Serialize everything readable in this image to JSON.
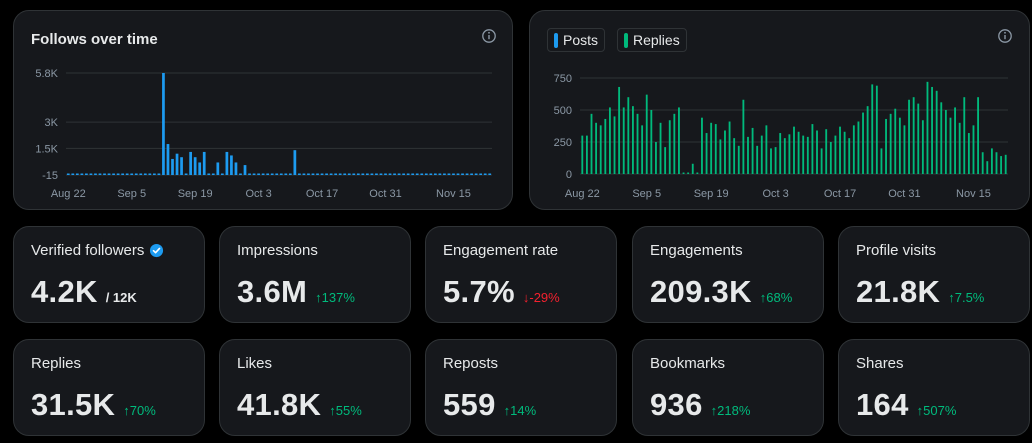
{
  "colors": {
    "posts": "#1d9bf0",
    "replies": "#00ba7c",
    "up": "#00ba7c",
    "down": "#f4212e"
  },
  "follows_chart": {
    "title": "Follows over time",
    "info_icon": "info-icon"
  },
  "posts_chart": {
    "legend_posts": "Posts",
    "legend_replies": "Replies",
    "info_icon": "info-icon"
  },
  "chart_data": [
    {
      "type": "bar",
      "title": "Follows over time",
      "series": [
        {
          "name": "Follows",
          "color": "#1d9bf0",
          "values": [
            -200,
            -200,
            -200,
            -250,
            -200,
            -220,
            -200,
            -250,
            -180,
            -200,
            -220,
            -200,
            -250,
            -230,
            -200,
            -200,
            -250,
            -200,
            -220,
            -250,
            -220,
            5800,
            1750,
            900,
            1200,
            1000,
            -200,
            1300,
            1000,
            700,
            1300,
            -200,
            -200,
            700,
            -200,
            1300,
            1100,
            700,
            -200,
            550,
            -200,
            -200,
            -150,
            -200,
            -200,
            -200,
            -200,
            -200,
            -200,
            -150,
            1400,
            -200,
            -200,
            -200,
            -200,
            -200,
            -200,
            -200,
            -200,
            -200,
            -200,
            -200,
            -200,
            -200,
            -200,
            -200,
            -200,
            -200,
            -200,
            -200,
            -200,
            -200,
            -200,
            -200,
            -200,
            -200,
            -200,
            -200,
            -200,
            -200,
            -200,
            -200,
            -200,
            -200,
            -200,
            -200,
            -200,
            -200,
            -200,
            -200,
            -200,
            -200,
            -200,
            -200
          ]
        }
      ],
      "x_tick_labels": [
        "Aug 22",
        "Sep 5",
        "Sep 19",
        "Oct 3",
        "Oct 17",
        "Oct 31",
        "Nov 15"
      ],
      "x_tick_index": [
        0,
        14,
        28,
        42,
        56,
        70,
        85
      ],
      "y_ticks": [
        -15,
        1500,
        3000,
        5800
      ],
      "y_tick_labels": [
        "-15",
        "1.5K",
        "3K",
        "5.8K"
      ],
      "ylim": [
        -15,
        5800
      ],
      "grid": true
    },
    {
      "type": "bar",
      "series": [
        {
          "name": "Posts",
          "color": "#1d9bf0",
          "values": []
        },
        {
          "name": "Replies",
          "color": "#00ba7c",
          "values": [
            300,
            300,
            470,
            400,
            380,
            430,
            520,
            450,
            680,
            520,
            600,
            530,
            470,
            380,
            620,
            500,
            250,
            400,
            210,
            420,
            470,
            520,
            0,
            0,
            80,
            0,
            440,
            320,
            400,
            390,
            270,
            340,
            410,
            280,
            220,
            580,
            290,
            360,
            220,
            300,
            380,
            200,
            210,
            320,
            280,
            310,
            370,
            330,
            300,
            290,
            390,
            340,
            200,
            350,
            250,
            300,
            370,
            330,
            280,
            380,
            410,
            480,
            530,
            700,
            690,
            200,
            430,
            470,
            510,
            440,
            380,
            580,
            600,
            550,
            420,
            720,
            680,
            650,
            560,
            500,
            440,
            520,
            400,
            600,
            320,
            380,
            600,
            170,
            100,
            200,
            170,
            140,
            150
          ]
        }
      ],
      "x_tick_labels": [
        "Aug 22",
        "Sep 5",
        "Sep 19",
        "Oct 3",
        "Oct 17",
        "Oct 31",
        "Nov 15"
      ],
      "x_tick_index": [
        0,
        14,
        28,
        42,
        56,
        70,
        85
      ],
      "y_ticks": [
        0,
        250,
        500,
        750
      ],
      "y_tick_labels": [
        "0",
        "250",
        "500",
        "750"
      ],
      "ylim": [
        0,
        750
      ],
      "grid": true
    }
  ],
  "stats": [
    {
      "label": "Verified followers",
      "value": "4.2K",
      "sub": "/ 12K",
      "icon": "verified-badge-icon"
    },
    {
      "label": "Impressions",
      "value": "3.6M",
      "change": "137%",
      "direction": "up"
    },
    {
      "label": "Engagement rate",
      "value": "5.7%",
      "change": "-29%",
      "direction": "down"
    },
    {
      "label": "Engagements",
      "value": "209.3K",
      "change": "68%",
      "direction": "up"
    },
    {
      "label": "Profile visits",
      "value": "21.8K",
      "change": "7.5%",
      "direction": "up"
    },
    {
      "label": "Replies",
      "value": "31.5K",
      "change": "70%",
      "direction": "up"
    },
    {
      "label": "Likes",
      "value": "41.8K",
      "change": "55%",
      "direction": "up"
    },
    {
      "label": "Reposts",
      "value": "559",
      "change": "14%",
      "direction": "up"
    },
    {
      "label": "Bookmarks",
      "value": "936",
      "change": "218%",
      "direction": "up"
    },
    {
      "label": "Shares",
      "value": "164",
      "change": "507%",
      "direction": "up"
    }
  ]
}
